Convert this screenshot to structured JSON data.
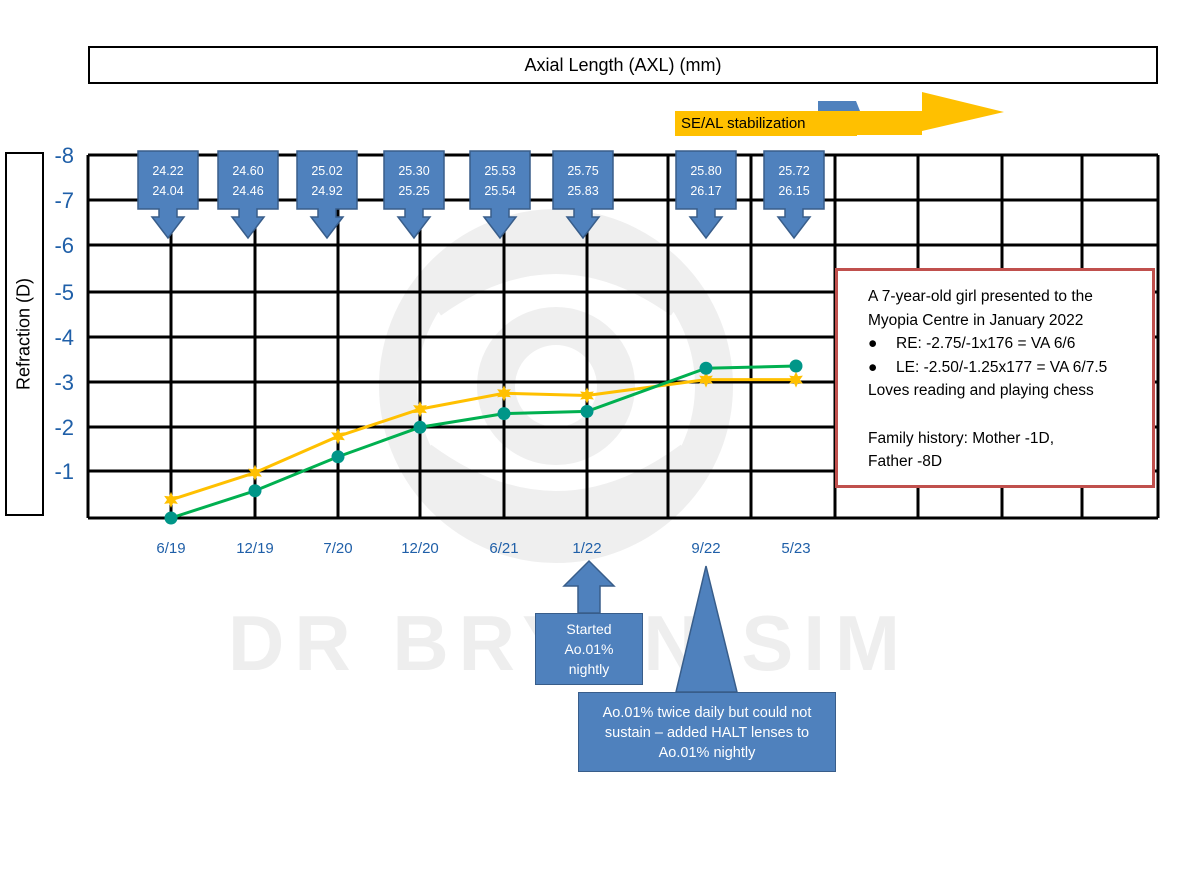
{
  "header": {
    "title": "Axial Length (AXL) (mm)"
  },
  "chart_data": {
    "type": "line",
    "title": "Axial Length (AXL) (mm)",
    "ylabel": "Refraction (D)",
    "xlabel": "",
    "y_tick_labels": [
      "-8",
      "-7",
      "-6",
      "-5",
      "-4",
      "-3",
      "-2",
      "-1"
    ],
    "ylim": [
      0,
      -8
    ],
    "grid": true,
    "categories": [
      "6/19",
      "12/19",
      "7/20",
      "12/20",
      "6/21",
      "1/22",
      "9/22",
      "5/23"
    ],
    "series": [
      {
        "color": "#ffc000",
        "marker": "star",
        "values": [
          -0.4,
          -1.0,
          -1.8,
          -2.4,
          -2.75,
          -2.7,
          -3.05,
          -3.05
        ]
      },
      {
        "color": "#00b050",
        "marker": "circle",
        "values": [
          0.0,
          -0.6,
          -1.35,
          -2.0,
          -2.3,
          -2.35,
          -3.3,
          -3.35
        ]
      }
    ],
    "axl_callouts": [
      {
        "top": "24.22",
        "bottom": "24.04"
      },
      {
        "top": "24.60",
        "bottom": "24.46"
      },
      {
        "top": "25.02",
        "bottom": "24.92"
      },
      {
        "top": "25.30",
        "bottom": "25.25"
      },
      {
        "top": "25.53",
        "bottom": "25.54"
      },
      {
        "top": "25.75",
        "bottom": "25.83"
      },
      {
        "top": "25.80",
        "bottom": "26.17"
      },
      {
        "top": "25.72",
        "bottom": "26.15"
      }
    ],
    "colors": {
      "callout": "#4f81bd",
      "callout_border": "#385d8a",
      "axis_text": "#1f5fa8",
      "grid": "#000000",
      "stabilization": "#ffc000"
    }
  },
  "annotations": {
    "stabilization": "SE/AL stabilization",
    "started": [
      "Started",
      "Ao.01%",
      "nightly"
    ],
    "halt": [
      "Ao.01% twice daily but could not",
      "sustain – added HALT lenses to",
      "Ao.01% nightly"
    ]
  },
  "info": {
    "lines": [
      "A 7-year-old girl presented to the",
      "Myopia Centre in January 2022"
    ],
    "bullets": [
      "RE: -2.75/-1x176 = VA 6/6",
      "LE: -2.50/-1.25x177 = VA 6/7.5"
    ],
    "hobby": "Loves reading and playing chess",
    "family": [
      "Family history: Mother -1D,",
      "Father -8D"
    ]
  },
  "watermark": {
    "text": "DR BRYAN SIM"
  }
}
